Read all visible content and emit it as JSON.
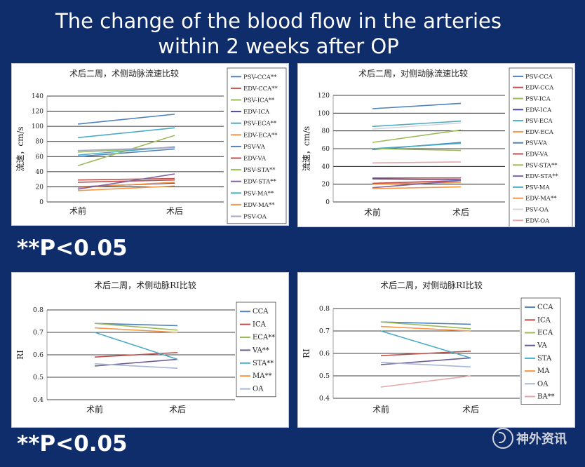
{
  "slide": {
    "title_line1": "The change of the blood flow in the arteries",
    "title_line2": "within 2 weeks after OP",
    "pnote_top": "**P<0.05",
    "pnote_bottom": "**P<0.05",
    "watermark": "神外资讯"
  },
  "chart_data": [
    {
      "type": "line",
      "title": "术后二周，术侧动脉流速比较",
      "ylabel": "流速，cm/s",
      "xlabel": "",
      "categories": [
        "术前",
        "术后"
      ],
      "ylim": [
        0,
        140
      ],
      "yticks": [
        0,
        20,
        40,
        60,
        80,
        100,
        120,
        140
      ],
      "grid": true,
      "legend": "right",
      "series": [
        {
          "name": "PSV-CCA**",
          "color": "#4f81bd",
          "values": [
            103,
            116
          ]
        },
        {
          "name": "EDV-CCA**",
          "color": "#c0504d",
          "values": [
            26,
            29
          ]
        },
        {
          "name": "PSV-ICA**",
          "color": "#9bbb59",
          "values": [
            66,
            72
          ]
        },
        {
          "name": "EDV-ICA",
          "color": "#4b4a9c",
          "values": [
            20,
            25
          ]
        },
        {
          "name": "PSV-ECA**",
          "color": "#4bacc6",
          "values": [
            85,
            98
          ]
        },
        {
          "name": "EDV-ECA**",
          "color": "#f79646",
          "values": [
            19,
            26
          ]
        },
        {
          "name": "PSV-VA",
          "color": "#4f81bd",
          "values": [
            60,
            70
          ]
        },
        {
          "name": "EDV-VA",
          "color": "#c0504d",
          "values": [
            29,
            31
          ]
        },
        {
          "name": "PSV-STA**",
          "color": "#9bbb59",
          "values": [
            48,
            88
          ]
        },
        {
          "name": "EDV-STA**",
          "color": "#8064a2",
          "values": [
            17,
            37
          ]
        },
        {
          "name": "PSV-MA**",
          "color": "#4bacc6",
          "values": [
            62,
            73
          ]
        },
        {
          "name": "EDV-MA**",
          "color": "#f79646",
          "values": [
            15,
            21
          ]
        },
        {
          "name": "PSV-OA",
          "color": "#a6a6c8",
          "values": [
            68,
            72
          ]
        }
      ]
    },
    {
      "type": "line",
      "title": "术后二周，对侧动脉流速比较",
      "ylabel": "流速，cm/s",
      "xlabel": "",
      "categories": [
        "术前",
        "术后"
      ],
      "ylim": [
        0,
        120
      ],
      "yticks": [
        0,
        20,
        40,
        60,
        80,
        100,
        120
      ],
      "grid": true,
      "legend": "right",
      "series": [
        {
          "name": "PSV-CCA",
          "color": "#4f81bd",
          "values": [
            105,
            111
          ]
        },
        {
          "name": "EDV-CCA",
          "color": "#c0504d",
          "values": [
            27,
            27
          ]
        },
        {
          "name": "PSV-ICA",
          "color": "#9bbb59",
          "values": [
            67,
            81
          ]
        },
        {
          "name": "EDV-ICA",
          "color": "#4b4a9c",
          "values": [
            26,
            25
          ]
        },
        {
          "name": "PSV-ECA",
          "color": "#4bacc6",
          "values": [
            85,
            91
          ]
        },
        {
          "name": "EDV-ECA",
          "color": "#f79646",
          "values": [
            20,
            22
          ]
        },
        {
          "name": "PSV-VA",
          "color": "#4f81bd",
          "values": [
            59,
            67
          ]
        },
        {
          "name": "EDV-VA",
          "color": "#c0504d",
          "values": [
            21,
            24
          ]
        },
        {
          "name": "PSV-STA**",
          "color": "#9bbb59",
          "values": [
            60,
            58
          ]
        },
        {
          "name": "EDV-STA**",
          "color": "#8064a2",
          "values": [
            16,
            24
          ]
        },
        {
          "name": "PSV-MA",
          "color": "#4bacc6",
          "values": [
            60,
            66
          ]
        },
        {
          "name": "EDV-MA**",
          "color": "#f79646",
          "values": [
            15,
            17
          ]
        },
        {
          "name": "PSV-OA",
          "color": "#d4d4e0",
          "values": [
            82,
            89
          ]
        },
        {
          "name": "EDV-OA",
          "color": "#e6a6a6",
          "values": [
            44,
            45
          ]
        }
      ]
    },
    {
      "type": "line",
      "title": "术后二周，术侧动脉RI比较",
      "ylabel": "RI",
      "xlabel": "",
      "categories": [
        "术前",
        "术后"
      ],
      "ylim": [
        0.4,
        0.8
      ],
      "yticks": [
        0.4,
        0.5,
        0.6,
        0.7,
        0.8
      ],
      "grid": true,
      "legend": "right",
      "series": [
        {
          "name": "CCA",
          "color": "#4f81bd",
          "values": [
            0.74,
            0.73
          ]
        },
        {
          "name": "ICA",
          "color": "#c0504d",
          "values": [
            0.59,
            0.61
          ]
        },
        {
          "name": "ECA**",
          "color": "#9bbb59",
          "values": [
            0.74,
            0.71
          ]
        },
        {
          "name": "VA**",
          "color": "#6b5b95",
          "values": [
            0.55,
            0.58
          ]
        },
        {
          "name": "STA**",
          "color": "#4bacc6",
          "values": [
            0.7,
            0.58
          ]
        },
        {
          "name": "MA**",
          "color": "#f79646",
          "values": [
            0.72,
            0.7
          ]
        },
        {
          "name": "OA",
          "color": "#a6b6d4",
          "values": [
            0.56,
            0.54
          ]
        }
      ]
    },
    {
      "type": "line",
      "title": "术后二周，对侧动脉RI比较",
      "ylabel": "RI",
      "xlabel": "",
      "categories": [
        "术前",
        "术后"
      ],
      "ylim": [
        0.4,
        0.8
      ],
      "yticks": [
        0.4,
        0.5,
        0.6,
        0.7,
        0.8
      ],
      "grid": true,
      "legend": "right",
      "series": [
        {
          "name": "CCA",
          "color": "#4f81bd",
          "values": [
            0.74,
            0.73
          ]
        },
        {
          "name": "ICA",
          "color": "#c0504d",
          "values": [
            0.59,
            0.61
          ]
        },
        {
          "name": "ECA",
          "color": "#9bbb59",
          "values": [
            0.74,
            0.71
          ]
        },
        {
          "name": "VA",
          "color": "#6b5b95",
          "values": [
            0.55,
            0.58
          ]
        },
        {
          "name": "STA",
          "color": "#4bacc6",
          "values": [
            0.7,
            0.58
          ]
        },
        {
          "name": "MA",
          "color": "#f79646",
          "values": [
            0.72,
            0.7
          ]
        },
        {
          "name": "OA",
          "color": "#a6b6d4",
          "values": [
            0.56,
            0.54
          ]
        },
        {
          "name": "BA**",
          "color": "#e6a6a6",
          "values": [
            0.45,
            0.5
          ]
        }
      ]
    }
  ]
}
